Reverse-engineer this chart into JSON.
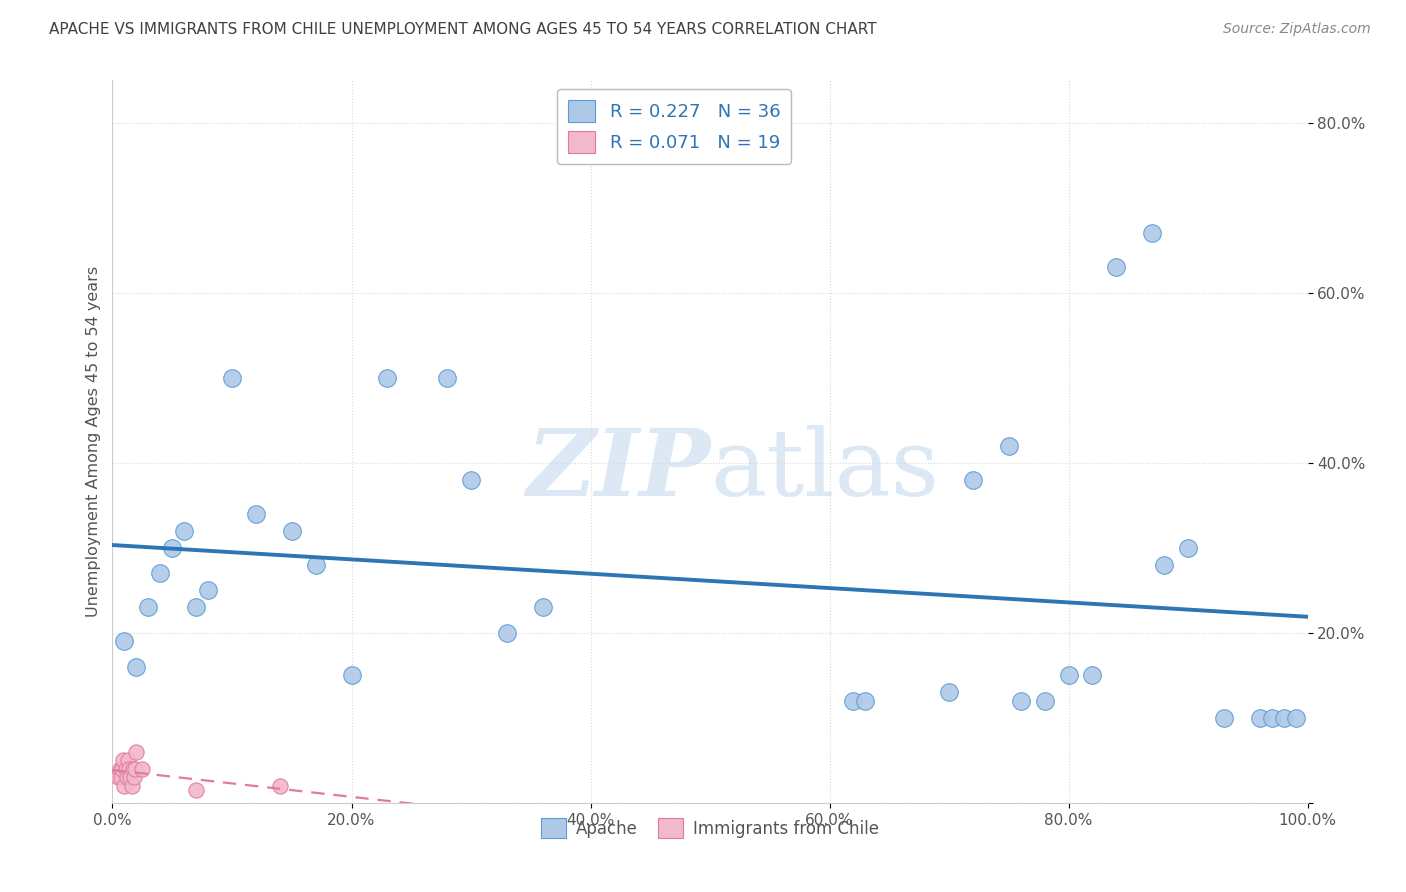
{
  "title": "APACHE VS IMMIGRANTS FROM CHILE UNEMPLOYMENT AMONG AGES 45 TO 54 YEARS CORRELATION CHART",
  "source": "Source: ZipAtlas.com",
  "ylabel": "Unemployment Among Ages 45 to 54 years",
  "apache_R": 0.227,
  "apache_N": 36,
  "chile_R": 0.071,
  "chile_N": 19,
  "apache_x": [
    0.01,
    0.02,
    0.03,
    0.04,
    0.05,
    0.06,
    0.07,
    0.08,
    0.1,
    0.12,
    0.15,
    0.17,
    0.2,
    0.23,
    0.28,
    0.3,
    0.33,
    0.36,
    0.62,
    0.63,
    0.7,
    0.72,
    0.75,
    0.76,
    0.78,
    0.8,
    0.82,
    0.84,
    0.87,
    0.88,
    0.9,
    0.93,
    0.96,
    0.97,
    0.98,
    0.99
  ],
  "apache_y": [
    0.19,
    0.16,
    0.23,
    0.27,
    0.3,
    0.32,
    0.23,
    0.25,
    0.5,
    0.34,
    0.32,
    0.28,
    0.15,
    0.5,
    0.5,
    0.38,
    0.2,
    0.23,
    0.12,
    0.12,
    0.13,
    0.38,
    0.42,
    0.12,
    0.12,
    0.15,
    0.15,
    0.63,
    0.67,
    0.28,
    0.3,
    0.1,
    0.1,
    0.1,
    0.1,
    0.1
  ],
  "chile_x": [
    0.005,
    0.006,
    0.007,
    0.008,
    0.009,
    0.01,
    0.011,
    0.012,
    0.013,
    0.014,
    0.015,
    0.016,
    0.017,
    0.018,
    0.019,
    0.02,
    0.025,
    0.07,
    0.14
  ],
  "chile_y": [
    0.03,
    0.04,
    0.03,
    0.04,
    0.05,
    0.02,
    0.04,
    0.03,
    0.05,
    0.04,
    0.03,
    0.02,
    0.04,
    0.03,
    0.04,
    0.06,
    0.04,
    0.015,
    0.02
  ],
  "xlim": [
    0.0,
    1.0
  ],
  "ylim": [
    0.0,
    0.85
  ],
  "xticks": [
    0.0,
    0.2,
    0.4,
    0.6,
    0.8,
    1.0
  ],
  "yticks": [
    0.0,
    0.2,
    0.4,
    0.6,
    0.8
  ],
  "xtick_labels": [
    "0.0%",
    "20.0%",
    "40.0%",
    "60.0%",
    "80.0%",
    "100.0%"
  ],
  "ytick_labels_right": [
    "",
    "20.0%",
    "40.0%",
    "60.0%",
    "80.0%"
  ],
  "apache_color": "#aec9e8",
  "apache_edge_color": "#5b9bd5",
  "apache_line_color": "#2e75b6",
  "chile_color": "#f2b8cb",
  "chile_edge_color": "#e07a9a",
  "chile_line_color": "#e07a9a",
  "legend_text_color": "#2e75b6",
  "background_color": "#ffffff",
  "grid_color": "#d8d8d8",
  "watermark_color": "#dce9f5",
  "title_color": "#404040",
  "source_color": "#888888",
  "tick_color": "#555555"
}
